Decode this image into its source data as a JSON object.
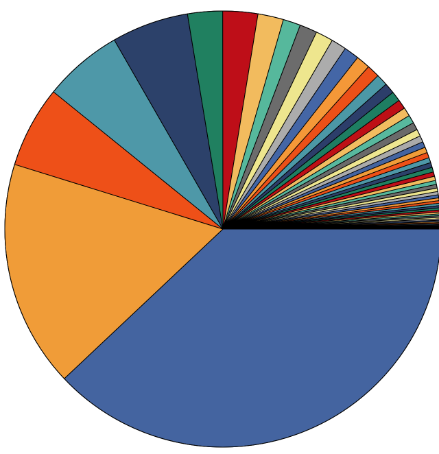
{
  "chart_data": {
    "type": "pie",
    "title": "",
    "start_direction": "east",
    "direction": "clockwise",
    "slice_border_color": "#000000",
    "values": [
      44.0,
      19.5,
      7.0,
      6.8,
      6.6,
      3.0,
      3.0,
      2.2,
      1.5,
      1.5,
      1.5,
      1.3,
      1.3,
      1.2,
      1.1,
      1.0,
      0.9,
      0.85,
      0.8,
      0.75,
      0.7,
      0.65,
      0.6,
      0.55,
      0.5,
      0.48,
      0.46,
      0.44,
      0.42,
      0.4,
      0.38,
      0.36,
      0.34,
      0.32,
      0.3,
      0.28,
      0.26,
      0.24,
      0.22,
      0.2,
      0.19,
      0.18,
      0.17,
      0.16,
      0.15,
      0.14,
      0.13,
      0.12,
      0.11,
      0.1,
      0.09,
      0.08,
      0.07,
      0.06,
      0.05,
      0.05,
      0.04,
      0.04,
      0.03,
      0.03
    ],
    "palette": [
      "#4464a0",
      "#f09c38",
      "#ee5018",
      "#4e98a8",
      "#2c416a",
      "#208060",
      "#be0e18",
      "#f2bb5e",
      "#56b89c",
      "#6c6c6c",
      "#eee68e",
      "#acacac",
      "#4466a6",
      "#f49838",
      "#ec5018",
      "#4c98a6",
      "#2c3e6a",
      "#1e7e62",
      "#be1016",
      "#f2bc60",
      "#58b89e",
      "#6a6a6a",
      "#eee690",
      "#aaaaaa"
    ]
  }
}
